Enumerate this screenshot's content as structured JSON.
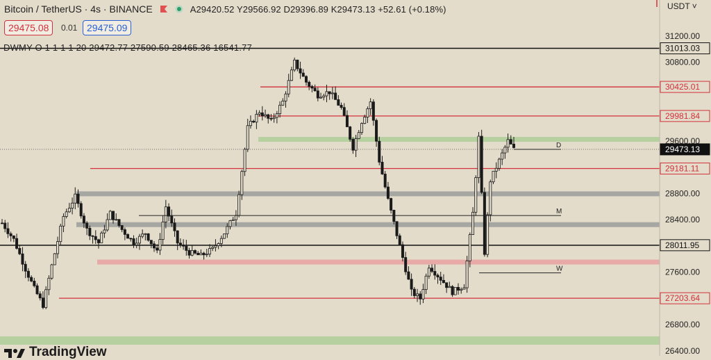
{
  "header": {
    "symbol_title": "Bitcoin / TetherUS · 4s · BINANCE",
    "ohlc": "A29420.52  Y29566.92  D29396.89  K29473.13  +52.61 (+0.18%)",
    "sell_price": "29475.08",
    "spread": "0.01",
    "buy_price": "29475.09",
    "indicator": "DWMY O 1 1 1 1 20   29472.77  27590.59  28465.36  16541.77",
    "currency": "USDT",
    "logo_text": "TradingView",
    "accent_red": "#d2303a",
    "accent_blue": "#2860d6"
  },
  "chart_data": {
    "type": "candlestick",
    "symbol": "BTC/USDT",
    "timeframe": "4s",
    "ylim": [
      26400,
      31400
    ],
    "y_ticks": [
      26400,
      26800,
      27200,
      27600,
      28000,
      28400,
      28800,
      29200,
      29600,
      30000,
      30400,
      30800,
      31200
    ],
    "y_tick_labels": [
      "26400.00",
      "26800.00",
      "27200.00",
      "27600.00",
      "28000.00",
      "28400.00",
      "28800.00",
      "29200.00",
      "29600.00",
      "30000.00",
      "30400.00",
      "30800.00",
      "31200.00"
    ],
    "last_price": 29473.13,
    "last_price_label": "29473.13",
    "levels": [
      {
        "value": 31013.03,
        "label": "31013.03",
        "color": "#111111",
        "kind": "black"
      },
      {
        "value": 30425.01,
        "label": "30425.01",
        "color": "#d2303a",
        "kind": "red"
      },
      {
        "value": 29981.84,
        "label": "29981.84",
        "color": "#d2303a",
        "kind": "red"
      },
      {
        "value": 29181.11,
        "label": "29181.11",
        "color": "#d2303a",
        "kind": "red"
      },
      {
        "value": 28011.95,
        "label": "28011.95",
        "color": "#111111",
        "kind": "black"
      },
      {
        "value": 27203.64,
        "label": "27203.64",
        "color": "#d2303a",
        "kind": "red"
      }
    ],
    "zones": [
      {
        "value": 29620,
        "color": "#b6d0a0"
      },
      {
        "value": 28790,
        "color": "#a6a6a2"
      },
      {
        "value": 28320,
        "color": "#a6a6a2"
      },
      {
        "value": 27750,
        "color": "#e7aaa6"
      },
      {
        "value": 26580,
        "color": "#b6d0a0"
      }
    ],
    "pivot_lines": [
      {
        "label": "D",
        "value": 29473
      },
      {
        "label": "M",
        "value": 28465
      },
      {
        "label": "W",
        "value": 27590
      }
    ],
    "trend_keypoints": [
      [
        0,
        28350
      ],
      [
        4,
        28100
      ],
      [
        8,
        27650
      ],
      [
        11,
        27350
      ],
      [
        14,
        27100
      ],
      [
        17,
        27700
      ],
      [
        21,
        28450
      ],
      [
        25,
        28750
      ],
      [
        29,
        28250
      ],
      [
        33,
        28050
      ],
      [
        37,
        28500
      ],
      [
        41,
        28250
      ],
      [
        45,
        28050
      ],
      [
        49,
        28200
      ],
      [
        53,
        27900
      ],
      [
        56,
        28600
      ],
      [
        60,
        28050
      ],
      [
        64,
        27900
      ],
      [
        68,
        27850
      ],
      [
        72,
        27950
      ],
      [
        76,
        28200
      ],
      [
        80,
        28500
      ],
      [
        84,
        29800
      ],
      [
        88,
        30050
      ],
      [
        92,
        29900
      ],
      [
        96,
        30200
      ],
      [
        100,
        30800
      ],
      [
        104,
        30500
      ],
      [
        108,
        30300
      ],
      [
        112,
        30350
      ],
      [
        116,
        30100
      ],
      [
        120,
        29500
      ],
      [
        123,
        29900
      ],
      [
        126,
        30200
      ],
      [
        129,
        29300
      ],
      [
        132,
        28700
      ],
      [
        136,
        28000
      ],
      [
        140,
        27300
      ],
      [
        143,
        27200
      ],
      [
        146,
        27700
      ],
      [
        150,
        27500
      ],
      [
        154,
        27300
      ],
      [
        158,
        27400
      ],
      [
        161,
        28500
      ],
      [
        163,
        29650
      ],
      [
        165,
        27900
      ],
      [
        167,
        29000
      ],
      [
        170,
        29300
      ],
      [
        173,
        29600
      ],
      [
        175,
        29473
      ]
    ]
  }
}
